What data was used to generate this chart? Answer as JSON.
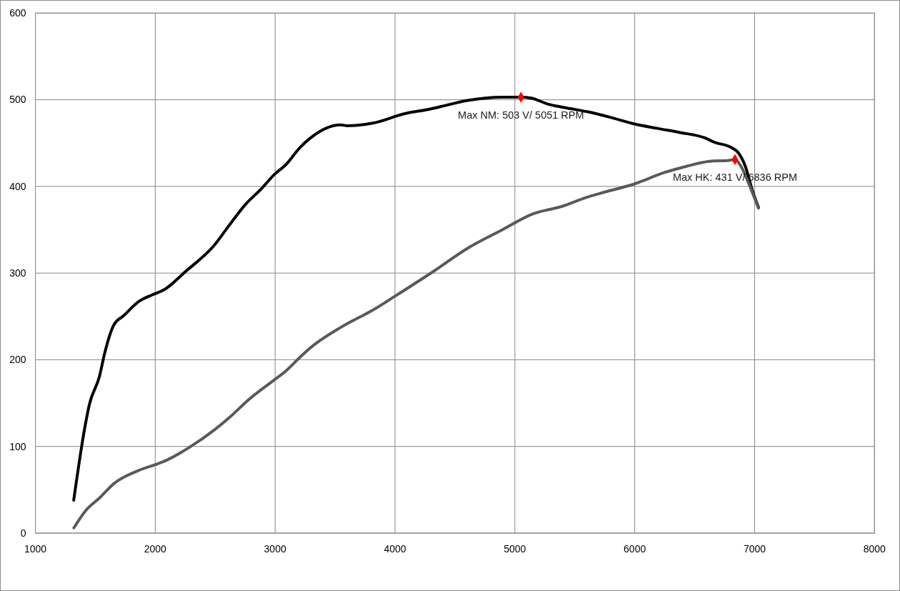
{
  "chart_data": {
    "type": "line",
    "xlim": [
      1000,
      8000
    ],
    "xticks": [
      1000,
      2000,
      3000,
      4000,
      5000,
      6000,
      7000,
      8000
    ],
    "ylim": [
      0,
      600
    ],
    "yticks": [
      0,
      100,
      200,
      300,
      400,
      500,
      600
    ],
    "grid": true,
    "series": [
      {
        "color": "#000000",
        "x": [
          1320,
          1414,
          1450,
          1535,
          1579,
          1654,
          1738,
          1861,
          1976,
          2076,
          2254,
          2492,
          2611,
          2751,
          2890,
          2995,
          3089,
          3208,
          3278,
          3546,
          3605,
          3814,
          4082,
          4281,
          4380,
          4598,
          4896,
          5051,
          5135,
          5274,
          5413,
          5611,
          5790,
          5999,
          6188,
          6386,
          6585,
          6664,
          6803,
          6863,
          6923,
          6982,
          7032
        ],
        "values": [
          38,
          123,
          148,
          181,
          208,
          240,
          251,
          267,
          275,
          281,
          302,
          332,
          354,
          379,
          398,
          414,
          425,
          445,
          454,
          471,
          470,
          473,
          484,
          489,
          492,
          499,
          503,
          503,
          502,
          495,
          491,
          486,
          480,
          472,
          467,
          462,
          456,
          451,
          445,
          439,
          423,
          395,
          376
        ]
      },
      {
        "color": "#595959",
        "x": [
          1321,
          1420,
          1539,
          1654,
          1857,
          2000,
          2076,
          2274,
          2493,
          2632,
          2771,
          2995,
          3089,
          3208,
          3278,
          3555,
          3824,
          3996,
          4321,
          4598,
          4896,
          5145,
          5393,
          5591,
          5711,
          5999,
          6247,
          6426,
          6624,
          6784,
          6836,
          6883,
          6943,
          7032
        ],
        "values": [
          6,
          26,
          41,
          57,
          72,
          79,
          83,
          98,
          119,
          135,
          153,
          177,
          187,
          203,
          212,
          238,
          258,
          273,
          302,
          328,
          350,
          368,
          377,
          387,
          392,
          403,
          416,
          423,
          429,
          430,
          431,
          424,
          406,
          375
        ]
      },
      {
        "type": "scatter",
        "color": "#ff0000",
        "marker": "diamond",
        "x": [
          5051,
          6836
        ],
        "values": [
          503,
          431
        ]
      }
    ],
    "annotations": [
      {
        "text": "Max NM: 503 V/ 5051 RPM",
        "x": 5051,
        "y": 503
      },
      {
        "text": "Max HK: 431 V/ 6836 RPM",
        "x": 6836,
        "y": 431
      }
    ]
  }
}
